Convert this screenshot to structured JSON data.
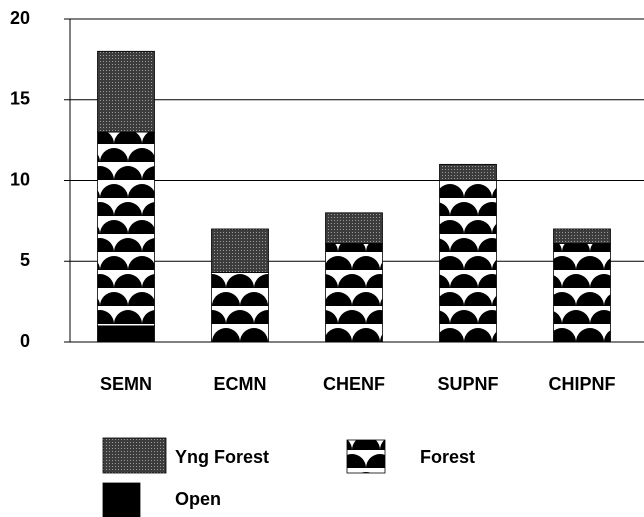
{
  "chart_data": {
    "type": "stacked-bar",
    "categories": [
      "SEMN",
      "ECMN",
      "CHENF",
      "SUPNF",
      "CHIPNF"
    ],
    "series": [
      {
        "name": "Open",
        "pattern": "solid",
        "color": "#000000",
        "values": [
          1,
          0,
          0,
          0,
          0
        ]
      },
      {
        "name": "Forest",
        "pattern": "scallops",
        "color": "#000000",
        "values": [
          12,
          4.3,
          6.1,
          10,
          6.1
        ]
      },
      {
        "name": "Yng Forest",
        "pattern": "dots",
        "color": "#3c3c3c",
        "values": [
          5,
          2.7,
          1.9,
          1,
          0.9
        ]
      }
    ],
    "ylim": [
      0,
      20
    ],
    "yticks": [
      0,
      5,
      10,
      15,
      20
    ],
    "grid": true
  }
}
